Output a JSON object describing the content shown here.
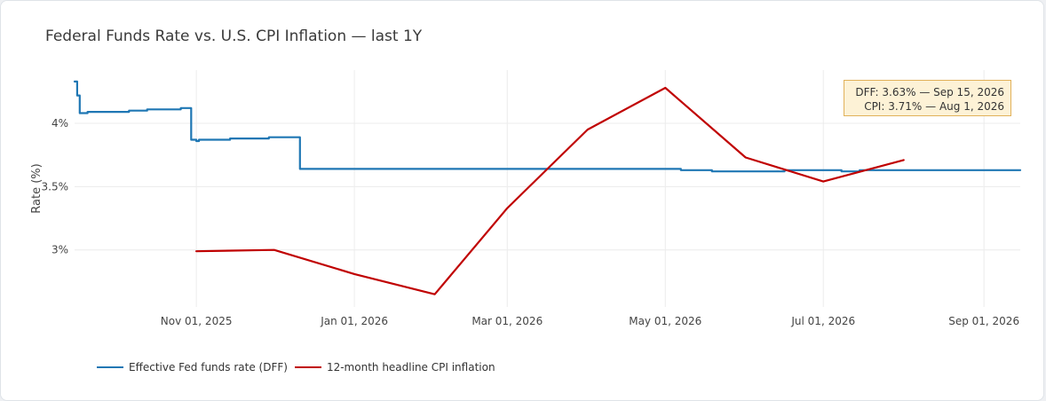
{
  "title": "Federal Funds Rate vs. U.S. CPI Inflation — last 1Y",
  "annotation": {
    "dff_text": "DFF: 3.63% — Sep 15, 2026",
    "cpi_text": "CPI: 3.71% — Aug 1, 2026"
  },
  "colors": {
    "dff": "#1f77b4",
    "cpi": "#c00000",
    "grid": "#ececec",
    "annotation_bg": "#fdf2d6",
    "annotation_border": "#e1b15a"
  },
  "chart_data": {
    "type": "line",
    "title": "Federal Funds Rate vs. U.S. CPI Inflation — last 1Y",
    "xlabel": "",
    "ylabel": "Rate (%)",
    "ylim": [
      2.55,
      4.42
    ],
    "xlim": [
      "2025-09-15",
      "2026-09-15"
    ],
    "grid": true,
    "legend_position": "bottom-left",
    "x_ticks": [
      {
        "date": "2025-11-01",
        "label": "Nov 01, 2025"
      },
      {
        "date": "2026-01-01",
        "label": "Jan 01, 2026"
      },
      {
        "date": "2026-03-01",
        "label": "Mar 01, 2026"
      },
      {
        "date": "2026-05-01",
        "label": "May 01, 2026"
      },
      {
        "date": "2026-07-01",
        "label": "Jul 01, 2026"
      },
      {
        "date": "2026-09-01",
        "label": "Sep 01, 2026"
      }
    ],
    "y_ticks": [
      {
        "value": 3.0,
        "label": "3%"
      },
      {
        "value": 3.5,
        "label": "3.5%"
      },
      {
        "value": 4.0,
        "label": "4%"
      }
    ],
    "series": [
      {
        "name": "Effective Fed funds rate (DFF)",
        "step": true,
        "points": [
          {
            "x": "2025-09-15",
            "y": 4.33
          },
          {
            "x": "2025-09-16",
            "y": 4.22
          },
          {
            "x": "2025-09-17",
            "y": 4.08
          },
          {
            "x": "2025-09-19",
            "y": 4.08
          },
          {
            "x": "2025-09-20",
            "y": 4.09
          },
          {
            "x": "2025-10-05",
            "y": 4.09
          },
          {
            "x": "2025-10-06",
            "y": 4.1
          },
          {
            "x": "2025-10-13",
            "y": 4.11
          },
          {
            "x": "2025-10-26",
            "y": 4.12
          },
          {
            "x": "2025-10-29",
            "y": 4.12
          },
          {
            "x": "2025-10-30",
            "y": 3.87
          },
          {
            "x": "2025-11-01",
            "y": 3.86
          },
          {
            "x": "2025-11-02",
            "y": 3.87
          },
          {
            "x": "2025-11-14",
            "y": 3.88
          },
          {
            "x": "2025-11-29",
            "y": 3.89
          },
          {
            "x": "2025-12-10",
            "y": 3.89
          },
          {
            "x": "2025-12-11",
            "y": 3.64
          },
          {
            "x": "2026-05-06",
            "y": 3.64
          },
          {
            "x": "2026-05-07",
            "y": 3.63
          },
          {
            "x": "2026-05-19",
            "y": 3.62
          },
          {
            "x": "2026-06-16",
            "y": 3.63
          },
          {
            "x": "2026-07-08",
            "y": 3.62
          },
          {
            "x": "2026-07-15",
            "y": 3.63
          },
          {
            "x": "2026-09-15",
            "y": 3.63
          }
        ]
      },
      {
        "name": "12-month headline CPI inflation",
        "step": false,
        "points": [
          {
            "x": "2025-11-01",
            "y": 2.99
          },
          {
            "x": "2025-12-01",
            "y": 3.0
          },
          {
            "x": "2026-01-01",
            "y": 2.81
          },
          {
            "x": "2026-02-01",
            "y": 2.65
          },
          {
            "x": "2026-03-01",
            "y": 3.33
          },
          {
            "x": "2026-04-01",
            "y": 3.95
          },
          {
            "x": "2026-05-01",
            "y": 4.28
          },
          {
            "x": "2026-06-01",
            "y": 3.73
          },
          {
            "x": "2026-07-01",
            "y": 3.54
          },
          {
            "x": "2026-08-01",
            "y": 3.71
          }
        ]
      }
    ]
  }
}
